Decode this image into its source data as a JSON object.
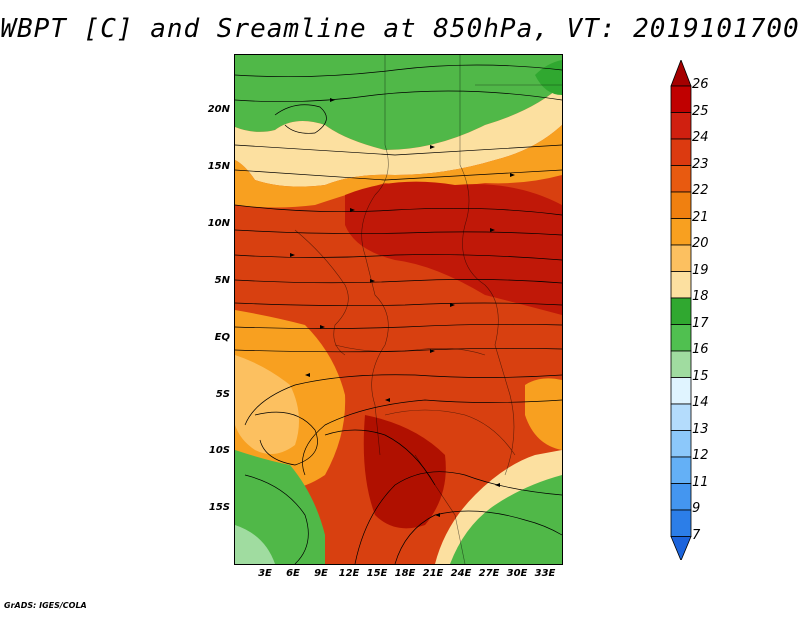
{
  "title": "WBPT [C] and Sreamline at 850hPa, VT: 2019101700",
  "map": {
    "lat_labels": [
      "20N",
      "15N",
      "10N",
      "5N",
      "EQ",
      "5S",
      "10S",
      "15S"
    ],
    "lon_labels": [
      "3E",
      "6E",
      "9E",
      "12E",
      "15E",
      "18E",
      "21E",
      "24E",
      "27E",
      "30E",
      "33E"
    ]
  },
  "colorbar": {
    "labels": [
      "26",
      "25",
      "24",
      "23",
      "22",
      "21",
      "20",
      "19",
      "18",
      "17",
      "16",
      "15",
      "14",
      "13",
      "12",
      "11",
      "9",
      "7"
    ],
    "colors": {
      "top_arrow": "#a50000",
      "bins": [
        "#c00000",
        "#d02010",
        "#dc3a10",
        "#e85a10",
        "#f08010",
        "#f8a020",
        "#fcc060",
        "#fce0a0",
        "#30a830",
        "#50c050",
        "#a0dca0",
        "#e0f4ff",
        "#b4dcfc",
        "#8cc8fa",
        "#64b0f6",
        "#4496f0",
        "#2c7ee8"
      ],
      "bottom_arrow": "#1c64dc"
    }
  },
  "credit": "GrADS: IGES/COLA"
}
